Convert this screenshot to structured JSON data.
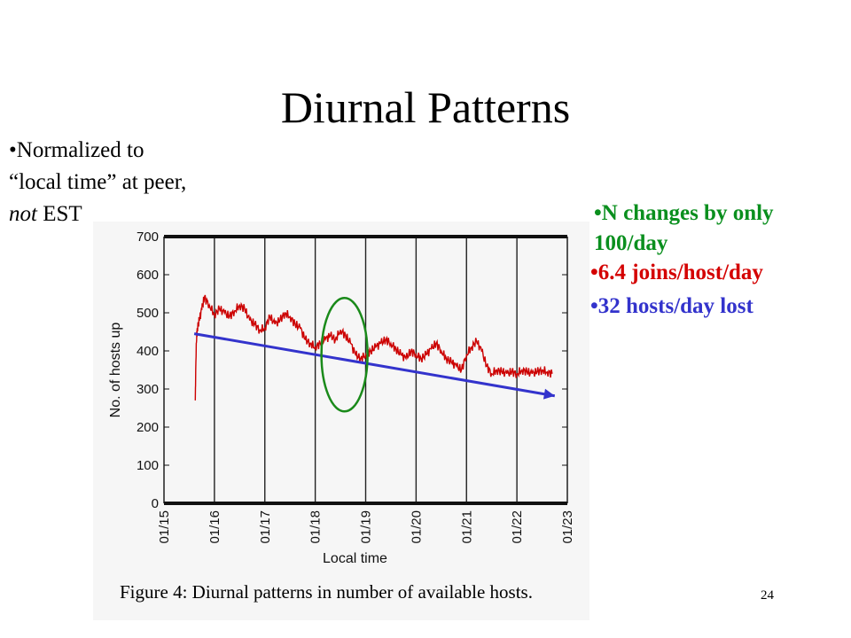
{
  "slide": {
    "title": "Diurnal Patterns",
    "page_number": "24",
    "note_left_line1": "Normalized to",
    "note_left_line2": "“local time” at peer,",
    "note_left_italic": "not",
    "note_left_rest": " EST",
    "note_green": "N changes by only 100/day",
    "note_red": "6.4 joins/host/day",
    "note_blue": "32 hosts/day lost",
    "bullet_char": "•"
  },
  "figure": {
    "caption": "Figure 4:  Diurnal patterns in number of available hosts."
  },
  "colors": {
    "series": "#cc0000",
    "trend_arrow": "#3333cc",
    "highlight_ellipse": "#1a8a1a",
    "green_text": "#0a8f1e",
    "red_text": "#d40000",
    "blue_text": "#3333cc"
  },
  "chart_data": {
    "type": "line",
    "title": "",
    "xlabel": "Local time",
    "ylabel": "No. of hosts up",
    "x_ticks": [
      "01/15",
      "01/16",
      "01/17",
      "01/18",
      "01/19",
      "01/20",
      "01/21",
      "01/22",
      "01/23"
    ],
    "y_ticks": [
      0,
      100,
      200,
      300,
      400,
      500,
      600,
      700
    ],
    "ylim": [
      0,
      700
    ],
    "xlim_days": [
      0,
      8
    ],
    "grid": "vertical lines at each day",
    "series": [
      {
        "x_days": [
          0.62,
          0.64,
          0.66,
          0.7,
          0.75,
          0.8,
          0.9,
          1.0,
          1.1,
          1.2,
          1.3,
          1.4,
          1.5,
          1.6,
          1.7,
          1.8,
          1.9,
          2.0,
          2.1,
          2.2,
          2.3,
          2.4,
          2.5,
          2.6,
          2.7,
          2.8,
          2.9,
          3.0,
          3.1,
          3.2,
          3.3,
          3.4,
          3.5,
          3.6,
          3.7,
          3.8,
          3.9,
          4.0,
          4.1,
          4.2,
          4.3,
          4.4,
          4.5,
          4.6,
          4.7,
          4.8,
          4.9,
          5.0,
          5.1,
          5.2,
          5.3,
          5.4,
          5.5,
          5.6,
          5.7,
          5.8,
          5.9,
          6.0,
          6.1,
          6.2,
          6.3,
          6.4,
          6.5,
          6.6,
          6.7,
          6.8,
          6.9,
          7.0,
          7.1,
          7.2,
          7.3,
          7.4,
          7.5,
          7.6,
          7.7
        ],
        "values": [
          270,
          420,
          460,
          480,
          510,
          540,
          520,
          495,
          510,
          500,
          490,
          505,
          520,
          510,
          480,
          470,
          455,
          460,
          490,
          470,
          480,
          500,
          490,
          470,
          460,
          430,
          420,
          410,
          420,
          430,
          440,
          430,
          455,
          440,
          420,
          390,
          380,
          390,
          400,
          410,
          420,
          430,
          420,
          405,
          390,
          380,
          400,
          390,
          380,
          390,
          405,
          420,
          400,
          380,
          370,
          360,
          350,
          390,
          410,
          425,
          400,
          360,
          340,
          350,
          345,
          340,
          345,
          340,
          350,
          345,
          340,
          345,
          350,
          345,
          340
        ]
      }
    ],
    "trend_line": {
      "from": {
        "x_days": 0.6,
        "y": 445
      },
      "to": {
        "x_days": 7.75,
        "y": 282
      }
    },
    "highlight": {
      "center_x_days": 3.58,
      "center_y": 390,
      "label": ""
    }
  }
}
